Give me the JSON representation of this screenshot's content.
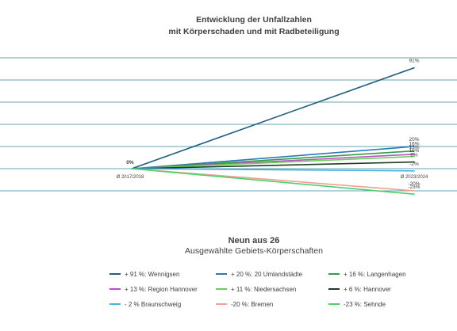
{
  "title_line1": "Entwicklung der Unfallzahlen",
  "title_line2": "mit Körperschaden und mit Radbeteiligung",
  "subtitle": "Neun aus 26",
  "subtitle2": "Ausgewählte Gebiets-Körperschaften",
  "chart_data": {
    "type": "line",
    "x": [
      "Ø 2017/2018",
      "Ø 2023/2024"
    ],
    "grid": true,
    "ylim": [
      -20,
      100
    ],
    "start_label": "0%",
    "series": [
      {
        "name": "+ 91 %: Wennigsen",
        "values": [
          0,
          91
        ],
        "end_label": "91%",
        "color": "#1f5f7f"
      },
      {
        "name": "+ 20 %: 20 Umlandstädte",
        "values": [
          0,
          20
        ],
        "end_label": "20%",
        "color": "#2a7ab8"
      },
      {
        "name": "+ 16 %: Langenhagen",
        "values": [
          0,
          16
        ],
        "end_label": "16%",
        "color": "#2ea043"
      },
      {
        "name": "+ 13 %: Region Hannover",
        "values": [
          0,
          13
        ],
        "end_label": "13%",
        "color": "#c04cc8"
      },
      {
        "name": "+ 11 %: Niedersachsen",
        "values": [
          0,
          11
        ],
        "end_label": "11%",
        "color": "#6ad05a"
      },
      {
        "name": "+ 6 %: Hannover",
        "values": [
          0,
          6
        ],
        "end_label": "6%",
        "color": "#1f3d26"
      },
      {
        "name": "- 2 % Braunschweig",
        "values": [
          0,
          -2
        ],
        "end_label": "-2%",
        "color": "#4ab0e0"
      },
      {
        "name": "-20 %: Bremen",
        "values": [
          0,
          -20
        ],
        "end_label": "-20%",
        "color": "#f0a090"
      },
      {
        "name": "-23 %: Sehnde",
        "values": [
          0,
          -23
        ],
        "end_label": "-23%",
        "color": "#4cd06a"
      }
    ]
  }
}
